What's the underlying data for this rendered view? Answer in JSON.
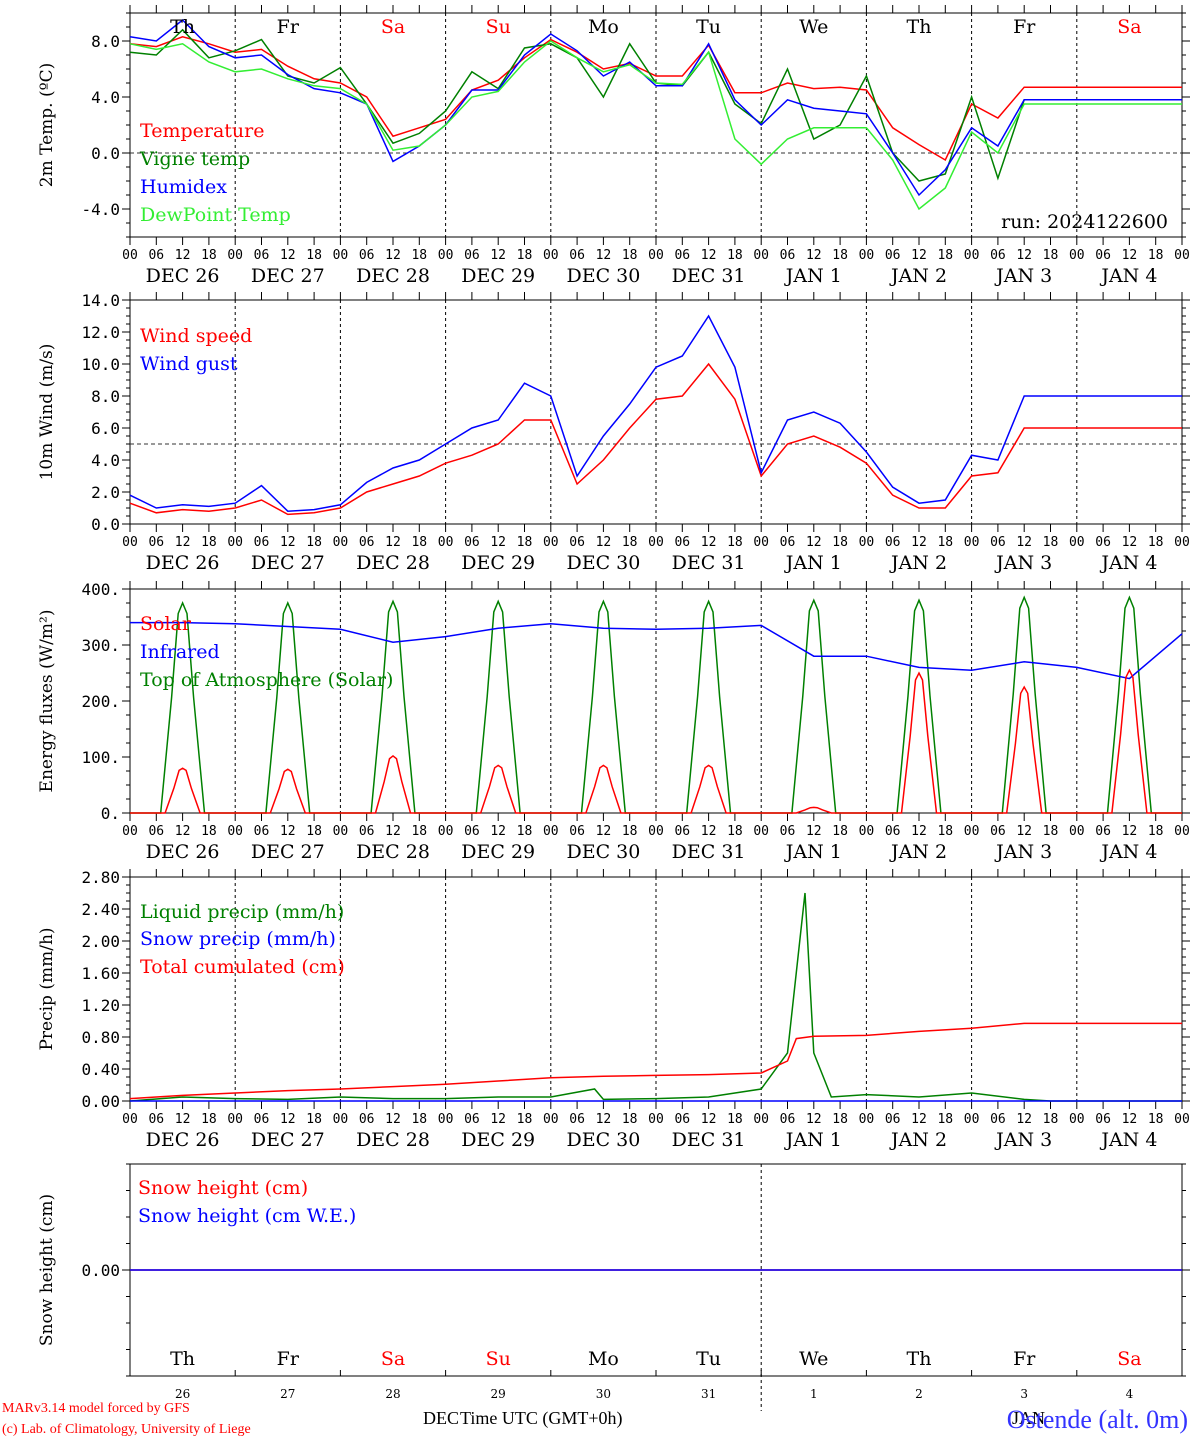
{
  "days": [
    "DEC 26",
    "DEC 27",
    "DEC 28",
    "DEC 29",
    "DEC 30",
    "DEC 31",
    "JAN  1",
    "JAN  2",
    "JAN  3",
    "JAN  4"
  ],
  "weekdays": [
    "Th",
    "Fr",
    "Sa",
    "Su",
    "Mo",
    "Tu",
    "We",
    "Th",
    "Fr",
    "Sa"
  ],
  "weekday_colors": [
    "#000000",
    "#000000",
    "#ff0000",
    "#ff0000",
    "#000000",
    "#000000",
    "#000000",
    "#000000",
    "#000000",
    "#ff0000"
  ],
  "day_numbers": [
    "26",
    "27",
    "28",
    "29",
    "30",
    "31",
    "1",
    "2",
    "3",
    "4"
  ],
  "hour_ticks": [
    "00",
    "06",
    "12",
    "18"
  ],
  "last_hour_tick": "00",
  "run_label": "run: 2024122600",
  "footer": {
    "model": "MARv3.14 model forced by GFS",
    "lab": "(c) Lab. of Climatology, University of Liege",
    "axis_title": "Time UTC (GMT+0h)",
    "month_left": "DEC",
    "month_right": "JAN",
    "station": "Ostende (alt. 0m)"
  },
  "colors": {
    "red": "#ff0000",
    "green": "#008000",
    "blue": "#0000ff",
    "lightgreen": "#33ee33"
  },
  "chart_data": [
    {
      "type": "line",
      "ylabel": "2m Temp. (ºC)",
      "ylim": [
        -6.0,
        10.0
      ],
      "yticks": [
        -4.0,
        0.0,
        4.0,
        8.0
      ],
      "ytick_labels": [
        "-4.0",
        "0.0",
        "4.0",
        "8.0"
      ],
      "ref_line": 0.0,
      "x_hours": [
        0,
        6,
        12,
        18,
        24,
        30,
        36,
        42,
        48,
        54,
        60,
        66,
        72,
        78,
        84,
        90,
        96,
        102,
        108,
        114,
        120,
        126,
        132,
        138,
        144,
        150,
        156,
        162,
        168,
        174,
        180,
        186,
        192,
        198,
        204,
        210,
        216,
        222,
        228,
        234,
        240
      ],
      "series": [
        {
          "name": "Temperature",
          "color": "red",
          "values": [
            7.8,
            7.6,
            8.3,
            7.8,
            7.2,
            7.4,
            6.2,
            5.3,
            5.0,
            4.0,
            1.2,
            1.8,
            2.4,
            4.5,
            5.2,
            6.8,
            8.1,
            7.2,
            6.0,
            6.4,
            5.5,
            5.5,
            7.7,
            4.3,
            4.3,
            5.0,
            4.6,
            4.7,
            4.5,
            1.8,
            0.6,
            -0.5,
            3.5,
            2.5,
            4.7,
            4.7,
            4.7,
            4.7,
            4.7,
            4.7,
            4.7
          ]
        },
        {
          "name": "Vigne temp",
          "color": "green",
          "values": [
            7.2,
            7.0,
            8.8,
            6.8,
            7.3,
            8.1,
            5.5,
            5.0,
            6.1,
            3.5,
            0.7,
            1.4,
            3.0,
            5.8,
            4.6,
            7.5,
            7.8,
            6.8,
            4.0,
            7.8,
            5.0,
            4.8,
            7.2,
            3.5,
            2.1,
            6.0,
            1.0,
            2.0,
            5.5,
            0.0,
            -2.0,
            -1.5,
            4.0,
            -1.8,
            3.8,
            3.8,
            3.8,
            3.8,
            3.8,
            3.8,
            3.8
          ]
        },
        {
          "name": "Humidex",
          "color": "blue",
          "values": [
            8.3,
            8.0,
            9.5,
            7.6,
            6.8,
            7.0,
            5.6,
            4.6,
            4.3,
            3.5,
            -0.6,
            0.5,
            2.0,
            4.5,
            4.5,
            7.0,
            8.5,
            7.3,
            5.5,
            6.5,
            4.8,
            4.8,
            7.8,
            3.8,
            2.0,
            3.8,
            3.2,
            3.0,
            2.8,
            0.0,
            -3.0,
            -1.2,
            1.8,
            0.5,
            3.8,
            3.8,
            3.8,
            3.8,
            3.8,
            3.8,
            3.8
          ]
        },
        {
          "name": "DewPoint Temp",
          "color": "lightgreen",
          "values": [
            7.8,
            7.4,
            7.8,
            6.5,
            5.8,
            6.0,
            5.3,
            4.8,
            4.6,
            3.5,
            0.2,
            0.5,
            2.0,
            4.0,
            4.4,
            6.5,
            8.0,
            6.8,
            5.8,
            6.3,
            5.0,
            4.9,
            7.2,
            1.0,
            -0.8,
            1.0,
            1.8,
            1.8,
            1.8,
            -0.5,
            -4.0,
            -2.5,
            1.5,
            0.0,
            3.5,
            3.5,
            3.5,
            3.5,
            3.5,
            3.5,
            3.5
          ]
        }
      ]
    },
    {
      "type": "line",
      "ylabel": "10m Wind (m/s)",
      "ylim": [
        0.0,
        14.0
      ],
      "yticks": [
        0.0,
        2.0,
        4.0,
        6.0,
        8.0,
        10.0,
        12.0,
        14.0
      ],
      "ytick_labels": [
        "0.0",
        "2.0",
        "4.0",
        "6.0",
        "8.0",
        "10.0",
        "12.0",
        "14.0"
      ],
      "ref_line": 5.0,
      "x_hours": [
        0,
        6,
        12,
        18,
        24,
        30,
        36,
        42,
        48,
        54,
        60,
        66,
        72,
        78,
        84,
        90,
        96,
        102,
        108,
        114,
        120,
        126,
        132,
        138,
        144,
        150,
        156,
        162,
        168,
        174,
        180,
        186,
        192,
        198,
        204,
        210,
        216,
        222,
        228,
        234,
        240
      ],
      "series": [
        {
          "name": "Wind speed",
          "color": "red",
          "values": [
            1.3,
            0.7,
            0.9,
            0.8,
            1.0,
            1.5,
            0.6,
            0.7,
            1.0,
            2.0,
            2.5,
            3.0,
            3.8,
            4.3,
            5.0,
            6.5,
            6.5,
            2.5,
            4.0,
            6.0,
            7.8,
            8.0,
            10.0,
            7.8,
            3.0,
            5.0,
            5.5,
            4.8,
            3.8,
            1.8,
            1.0,
            1.0,
            3.0,
            3.2,
            6.0,
            6.0,
            6.0,
            6.0,
            6.0,
            6.0,
            6.0
          ]
        },
        {
          "name": "Wind gust",
          "color": "blue",
          "values": [
            1.8,
            1.0,
            1.2,
            1.1,
            1.3,
            2.4,
            0.8,
            0.9,
            1.2,
            2.6,
            3.5,
            4.0,
            5.0,
            6.0,
            6.5,
            8.8,
            8.0,
            3.0,
            5.5,
            7.5,
            9.8,
            10.5,
            13.0,
            9.8,
            3.2,
            6.5,
            7.0,
            6.3,
            4.5,
            2.3,
            1.3,
            1.5,
            4.3,
            4.0,
            8.0,
            8.0,
            8.0,
            8.0,
            8.0,
            8.0,
            8.0
          ]
        }
      ]
    },
    {
      "type": "line",
      "ylabel": "Energy fluxes (W/m²)",
      "ylim": [
        0,
        400
      ],
      "yticks": [
        0,
        100,
        200,
        300,
        400
      ],
      "ytick_labels": [
        "0.",
        "100.",
        "200.",
        "300.",
        "400."
      ],
      "series": [
        {
          "name": "Solar",
          "color": "red",
          "peaks": [
            80,
            78,
            102,
            85,
            85,
            85,
            10,
            250,
            225,
            255
          ]
        },
        {
          "name": "Infrared",
          "color": "blue",
          "x_hours": [
            0,
            12,
            24,
            36,
            48,
            60,
            72,
            84,
            96,
            108,
            120,
            132,
            144,
            156,
            168,
            180,
            192,
            204,
            216,
            228,
            240
          ],
          "values": [
            340,
            340,
            338,
            333,
            328,
            305,
            315,
            330,
            338,
            330,
            328,
            330,
            335,
            280,
            280,
            260,
            255,
            270,
            260,
            240,
            320
          ]
        },
        {
          "name": "Top of Atmosphere (Solar)",
          "color": "green",
          "peaks": [
            375,
            375,
            378,
            378,
            378,
            378,
            380,
            380,
            385,
            385
          ]
        }
      ]
    },
    {
      "type": "line",
      "ylabel": "Precip (mm/h)",
      "ylim": [
        0.0,
        2.8
      ],
      "yticks": [
        0.0,
        0.4,
        0.8,
        1.2,
        1.6,
        2.0,
        2.4,
        2.8
      ],
      "ytick_labels": [
        "0.00",
        "0.40",
        "0.80",
        "1.20",
        "1.60",
        "2.00",
        "2.40",
        "2.80"
      ],
      "series": [
        {
          "name": "Liquid precip (mm/h)",
          "color": "green",
          "x_hours": [
            0,
            12,
            24,
            36,
            48,
            60,
            72,
            84,
            96,
            106,
            108,
            120,
            132,
            144,
            150,
            154,
            156,
            160,
            168,
            180,
            192,
            204,
            210,
            216,
            222,
            228,
            234,
            240
          ],
          "values": [
            0,
            0.05,
            0.03,
            0.02,
            0.05,
            0.03,
            0.03,
            0.05,
            0.05,
            0.15,
            0.02,
            0.03,
            0.05,
            0.15,
            0.6,
            2.6,
            0.6,
            0.05,
            0.08,
            0.05,
            0.1,
            0.02,
            0,
            0,
            0,
            0,
            0,
            0
          ]
        },
        {
          "name": "Snow precip (mm/h)",
          "color": "blue",
          "x_hours": [
            0,
            240
          ],
          "values": [
            0,
            0
          ]
        },
        {
          "name": "Total cumulated (cm)",
          "color": "red",
          "x_hours": [
            0,
            12,
            24,
            36,
            48,
            60,
            72,
            84,
            96,
            108,
            120,
            132,
            144,
            150,
            152,
            156,
            168,
            180,
            192,
            204,
            216,
            228,
            240
          ],
          "values": [
            0.03,
            0.07,
            0.1,
            0.13,
            0.15,
            0.18,
            0.21,
            0.25,
            0.29,
            0.31,
            0.32,
            0.33,
            0.35,
            0.5,
            0.78,
            0.81,
            0.82,
            0.87,
            0.91,
            0.97,
            0.97,
            0.97,
            0.97
          ]
        }
      ]
    },
    {
      "type": "line",
      "ylabel": "Snow height (cm)",
      "ylim": [
        -1.0,
        1.0
      ],
      "yticks": [
        0.0
      ],
      "ytick_labels": [
        "0.00"
      ],
      "series": [
        {
          "name": "Snow height (cm)",
          "color": "red",
          "x_hours": [
            0,
            240
          ],
          "values": [
            0,
            0
          ]
        },
        {
          "name": "Snow height (cm W.E.)",
          "color": "blue",
          "x_hours": [
            0,
            240
          ],
          "values": [
            0,
            0
          ]
        }
      ]
    }
  ]
}
